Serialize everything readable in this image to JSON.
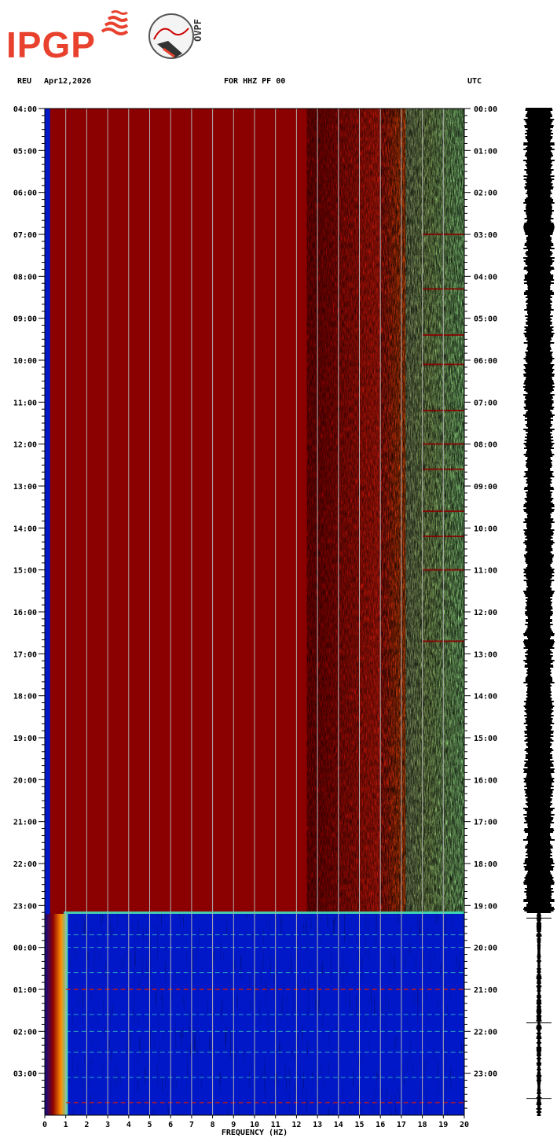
{
  "header": {
    "station": "REU",
    "date": "Apr12,2026",
    "channel": "FOR HHZ PF 00",
    "timezone": "UTC"
  },
  "logos": {
    "left": "IPGP",
    "right_mark": "OVPF"
  },
  "colors": {
    "dark_red": "#8b0000",
    "red": "#d41a0a",
    "orange": "#ff8c00",
    "yellow": "#f0e040",
    "cyan": "#40e0c0",
    "blue": "#0018c8",
    "navy": "#0a0a8c",
    "grid": "#b0b0b0",
    "logo_red": "#e8412e"
  },
  "chart_data": {
    "type": "heatmap",
    "title": "FOR HHZ PF 00",
    "xlabel": "FREQUENCY (HZ)",
    "x_ticks": [
      "0",
      "1",
      "2",
      "3",
      "4",
      "5",
      "6",
      "7",
      "8",
      "9",
      "10",
      "11",
      "12",
      "13",
      "14",
      "15",
      "16",
      "17",
      "18",
      "19",
      "20"
    ],
    "xlim": [
      0,
      20
    ],
    "left_time_labels": [
      "04:00",
      "05:00",
      "06:00",
      "07:00",
      "08:00",
      "09:00",
      "10:00",
      "11:00",
      "12:00",
      "13:00",
      "14:00",
      "15:00",
      "16:00",
      "17:00",
      "18:00",
      "19:00",
      "20:00",
      "21:00",
      "22:00",
      "23:00",
      "00:00",
      "01:00",
      "02:00",
      "03:00"
    ],
    "right_time_labels": [
      "00:00",
      "01:00",
      "02:00",
      "03:00",
      "04:00",
      "05:00",
      "06:00",
      "07:00",
      "08:00",
      "09:00",
      "10:00",
      "11:00",
      "12:00",
      "13:00",
      "14:00",
      "15:00",
      "16:00",
      "17:00",
      "18:00",
      "19:00",
      "20:00",
      "21:00",
      "22:00",
      "23:00"
    ],
    "rows_hours": 24,
    "regime_change_hour": 19.2,
    "description_bands": {
      "before_change": "saturated dark red from 1-13 Hz, red/orange/yellow noise 13-18 Hz, yellow/cyan 18-20 Hz",
      "after_change": "low-energy blue background with faint horizontal streaks"
    },
    "grid": true
  }
}
